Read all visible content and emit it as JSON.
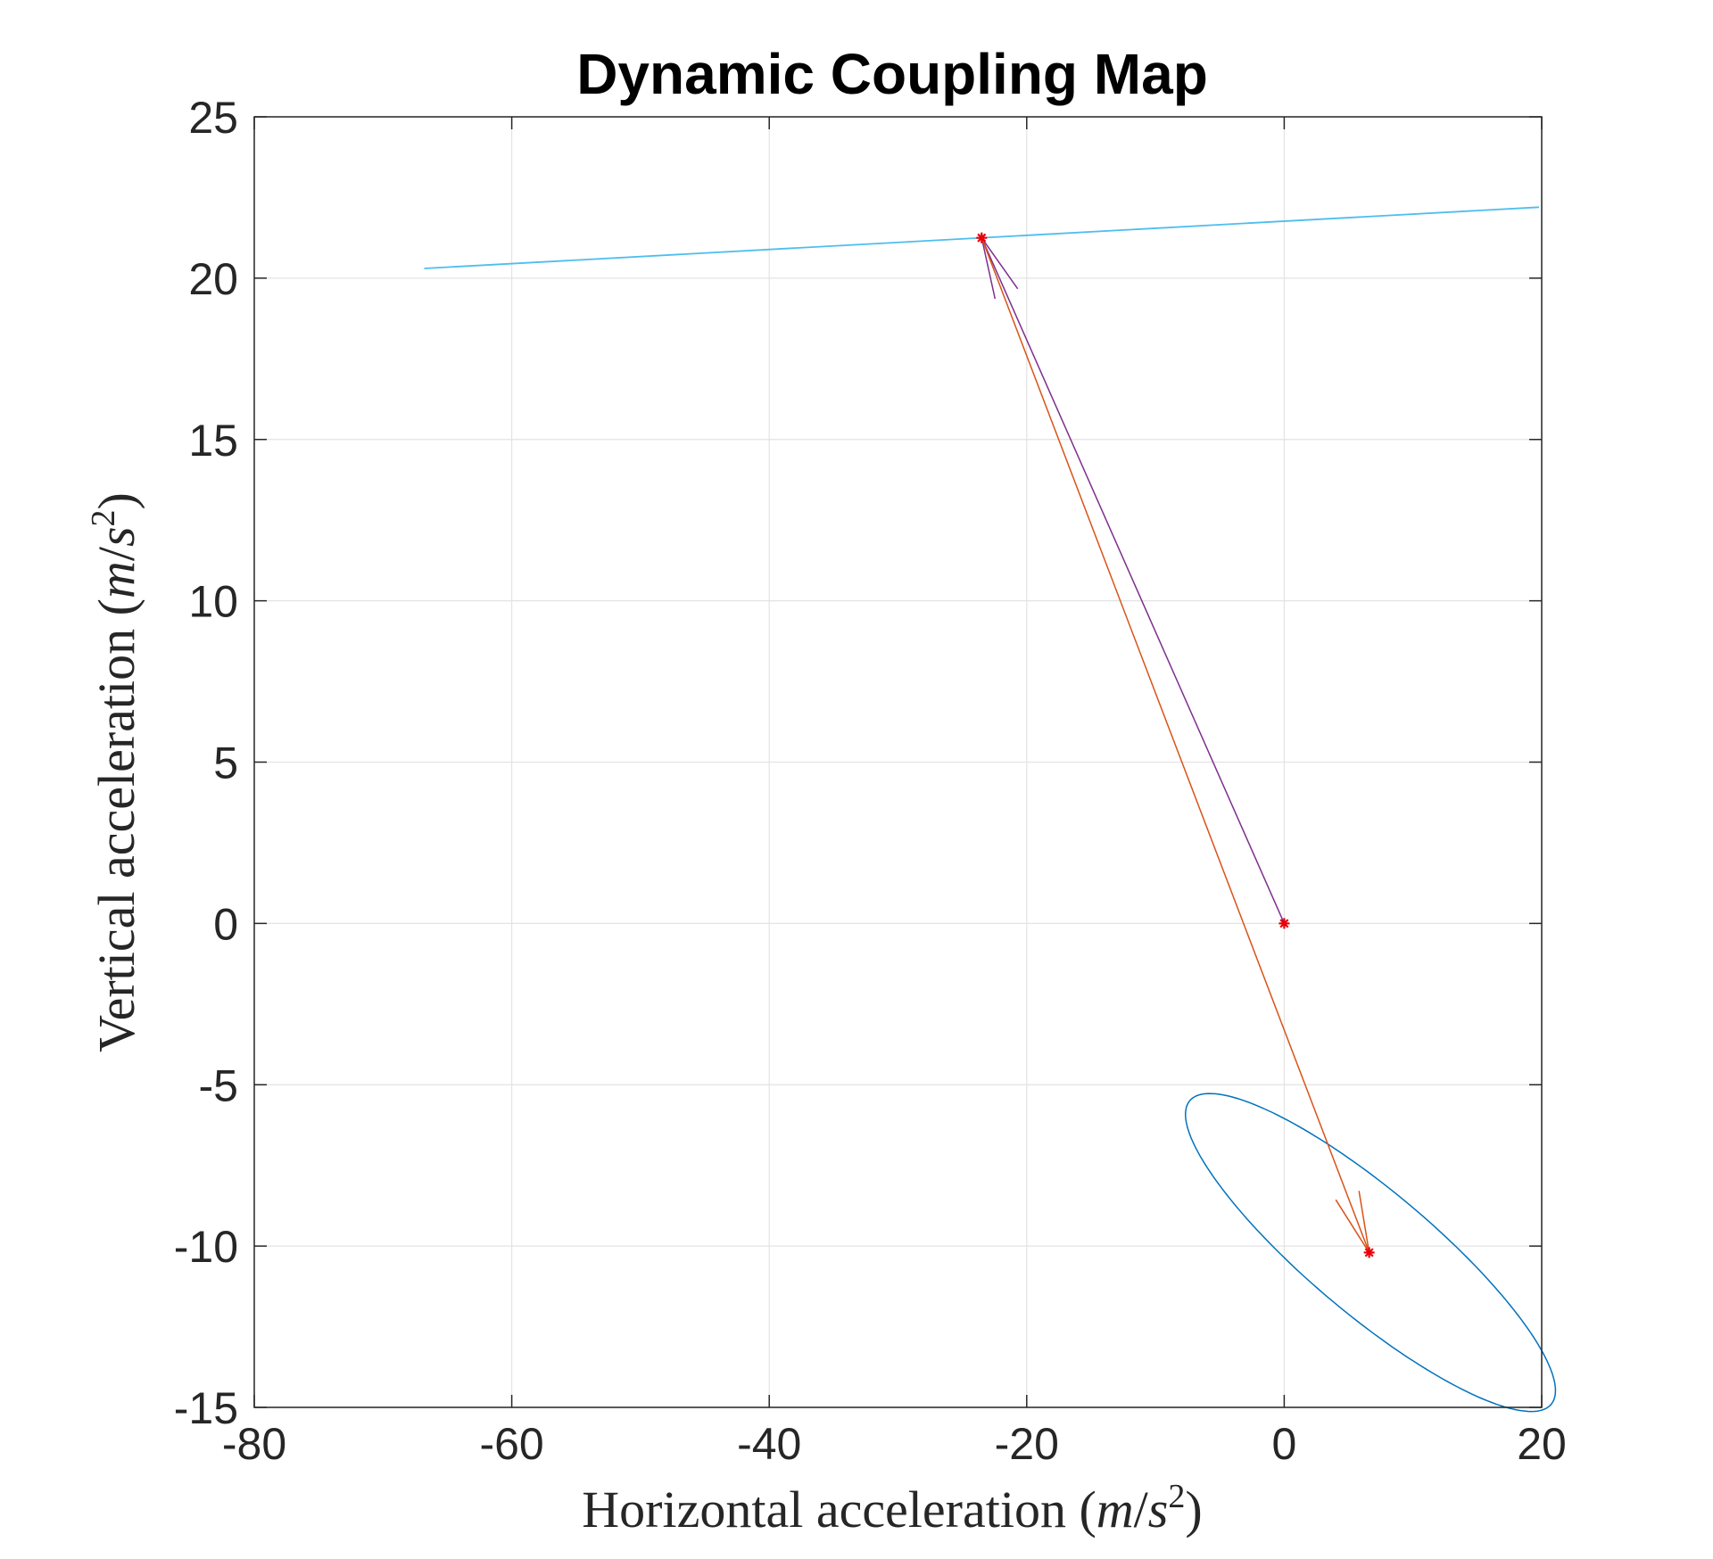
{
  "chart_data": {
    "type": "line",
    "title": "Dynamic Coupling Map",
    "xlabel": {
      "prefix": "Horizontal acceleration ",
      "open": "(",
      "m": "m",
      "slash": "/",
      "s": "s",
      "exp": "2",
      "close": ")"
    },
    "ylabel": {
      "prefix": "Vertical acceleration ",
      "open": "(",
      "m": "m",
      "slash": "/",
      "s": "s",
      "exp": "2",
      "close": ")"
    },
    "xlim": [
      -80,
      20
    ],
    "ylim": [
      -15,
      25
    ],
    "xticks": [
      -80,
      -60,
      -40,
      -20,
      0,
      20
    ],
    "xtick_labels": [
      "-80",
      "-60",
      "-40",
      "-20",
      "0",
      "20"
    ],
    "yticks": [
      25,
      20,
      15,
      10,
      5,
      0,
      -5,
      -10,
      -15
    ],
    "ytick_labels": [
      "25",
      "20",
      "15",
      "10",
      "5",
      "0",
      "-5",
      "-10",
      "-15"
    ],
    "grid": true,
    "curves": [
      {
        "kind": "line",
        "color": "#4DBEEE",
        "points": [
          [
            -66.8,
            20.3
          ],
          [
            19.8,
            22.2
          ]
        ]
      },
      {
        "kind": "ellipse",
        "color": "#0072BD",
        "center": [
          6.7,
          -10.2
        ],
        "semi_axes": [
          14.5,
          0.55
        ],
        "angle_deg": -25
      }
    ],
    "arrows": [
      {
        "from": [
          0,
          0
        ],
        "to": [
          -23.5,
          21.25
        ],
        "color": "#7E2F8E"
      },
      {
        "from": [
          -23.5,
          21.25
        ],
        "to": [
          6.6,
          -10.2
        ],
        "color": "#D95319"
      }
    ],
    "markers": {
      "symbol": "*",
      "color": "#E8000B",
      "points": [
        [
          0,
          0
        ],
        [
          -23.5,
          21.25
        ],
        [
          6.6,
          -10.2
        ]
      ]
    }
  }
}
